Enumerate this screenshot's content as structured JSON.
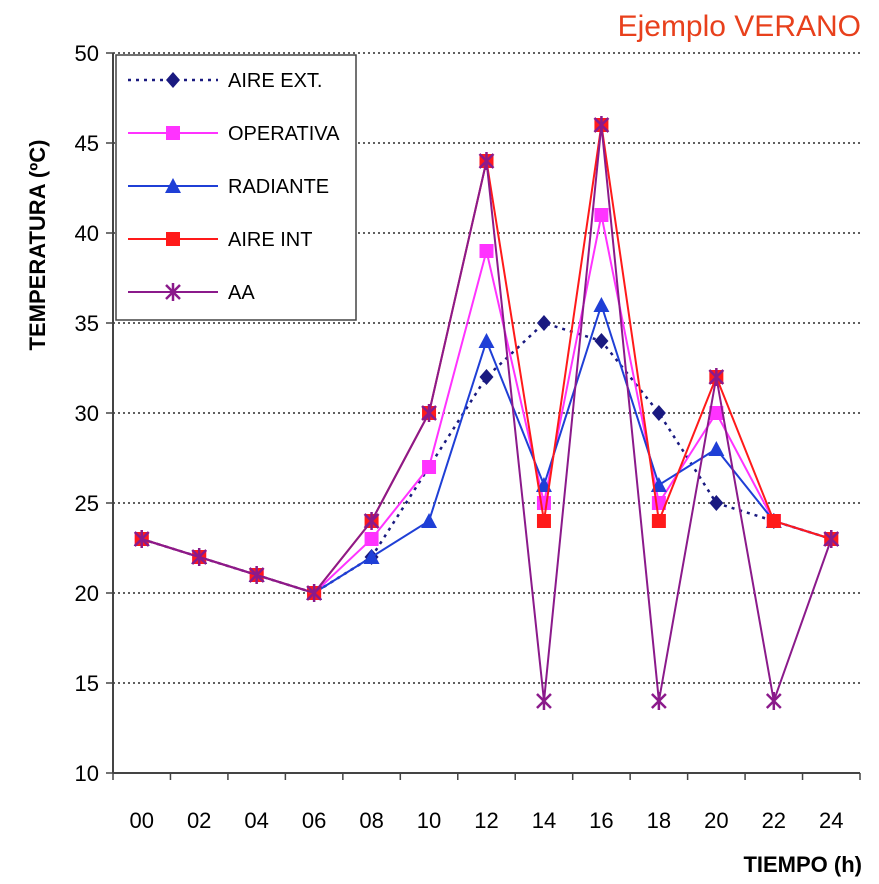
{
  "chart_data": {
    "type": "line",
    "title": "Ejemplo VERANO",
    "xlabel": "TIEMPO (h)",
    "ylabel": "TEMPERATURA (ºC)",
    "ylim": [
      10,
      50
    ],
    "yticks": [
      "10",
      "15",
      "20",
      "25",
      "30",
      "35",
      "40",
      "45",
      "50"
    ],
    "categories": [
      "00",
      "02",
      "04",
      "06",
      "08",
      "10",
      "12",
      "14",
      "16",
      "18",
      "20",
      "22",
      "24"
    ],
    "grid": "horizontal dotted",
    "legend_position": "top-left",
    "series": [
      {
        "name": "AIRE EXT.",
        "color": "#1a1a80",
        "marker": "diamond",
        "dash": "dotted",
        "values": [
          23,
          22,
          21,
          20,
          22,
          null,
          32,
          35,
          34,
          30,
          25,
          24,
          23
        ]
      },
      {
        "name": "OPERATIVA",
        "color": "#ff33ff",
        "marker": "square",
        "dash": "solid",
        "values": [
          23,
          22,
          21,
          20,
          23,
          27,
          39,
          25,
          41,
          25,
          30,
          24,
          23
        ]
      },
      {
        "name": "RADIANTE",
        "color": "#1f3fd6",
        "marker": "triangle",
        "dash": "solid",
        "values": [
          23,
          22,
          21,
          20,
          22,
          24,
          34,
          26,
          36,
          26,
          28,
          24,
          23
        ]
      },
      {
        "name": "AIRE INT",
        "color": "#ff1a1a",
        "marker": "square",
        "dash": "solid",
        "values": [
          23,
          22,
          21,
          20,
          24,
          30,
          44,
          24,
          46,
          24,
          32,
          24,
          23
        ]
      },
      {
        "name": "AA",
        "color": "#8b1a8b",
        "marker": "star",
        "dash": "solid",
        "values": [
          23,
          22,
          21,
          20,
          24,
          30,
          44,
          14,
          46,
          14,
          32,
          14,
          23
        ]
      }
    ]
  }
}
